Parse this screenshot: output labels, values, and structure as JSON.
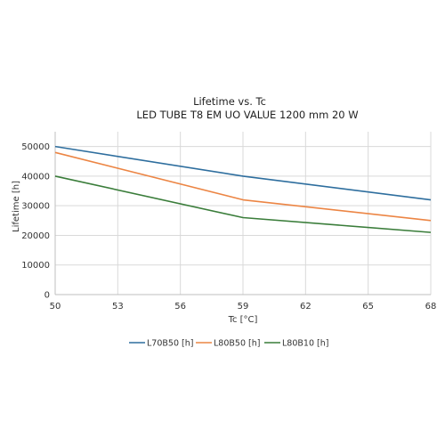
{
  "chart_data": {
    "type": "line",
    "title": "Lifetime vs. Tc",
    "subtitle": "LED TUBE T8 EM UO VALUE 1200 mm 20 W",
    "xlabel": "Tc [°C]",
    "ylabel": "Lifetime [h]",
    "x": [
      50,
      59,
      68
    ],
    "xlim": [
      50,
      68
    ],
    "xticks": [
      50,
      53,
      56,
      59,
      62,
      65,
      68
    ],
    "ylim": [
      0,
      55000
    ],
    "yticks": [
      0,
      10000,
      20000,
      30000,
      40000,
      50000
    ],
    "grid": true,
    "legend_position": "bottom",
    "series": [
      {
        "name": "L70B50 [h]",
        "color": "#2e6e9e",
        "values": [
          50000,
          40000,
          32000
        ]
      },
      {
        "name": "L80B50 [h]",
        "color": "#ec8544",
        "values": [
          48000,
          32000,
          25000
        ]
      },
      {
        "name": "L80B10 [h]",
        "color": "#3a7d3a",
        "values": [
          40000,
          26000,
          21000
        ]
      }
    ]
  }
}
